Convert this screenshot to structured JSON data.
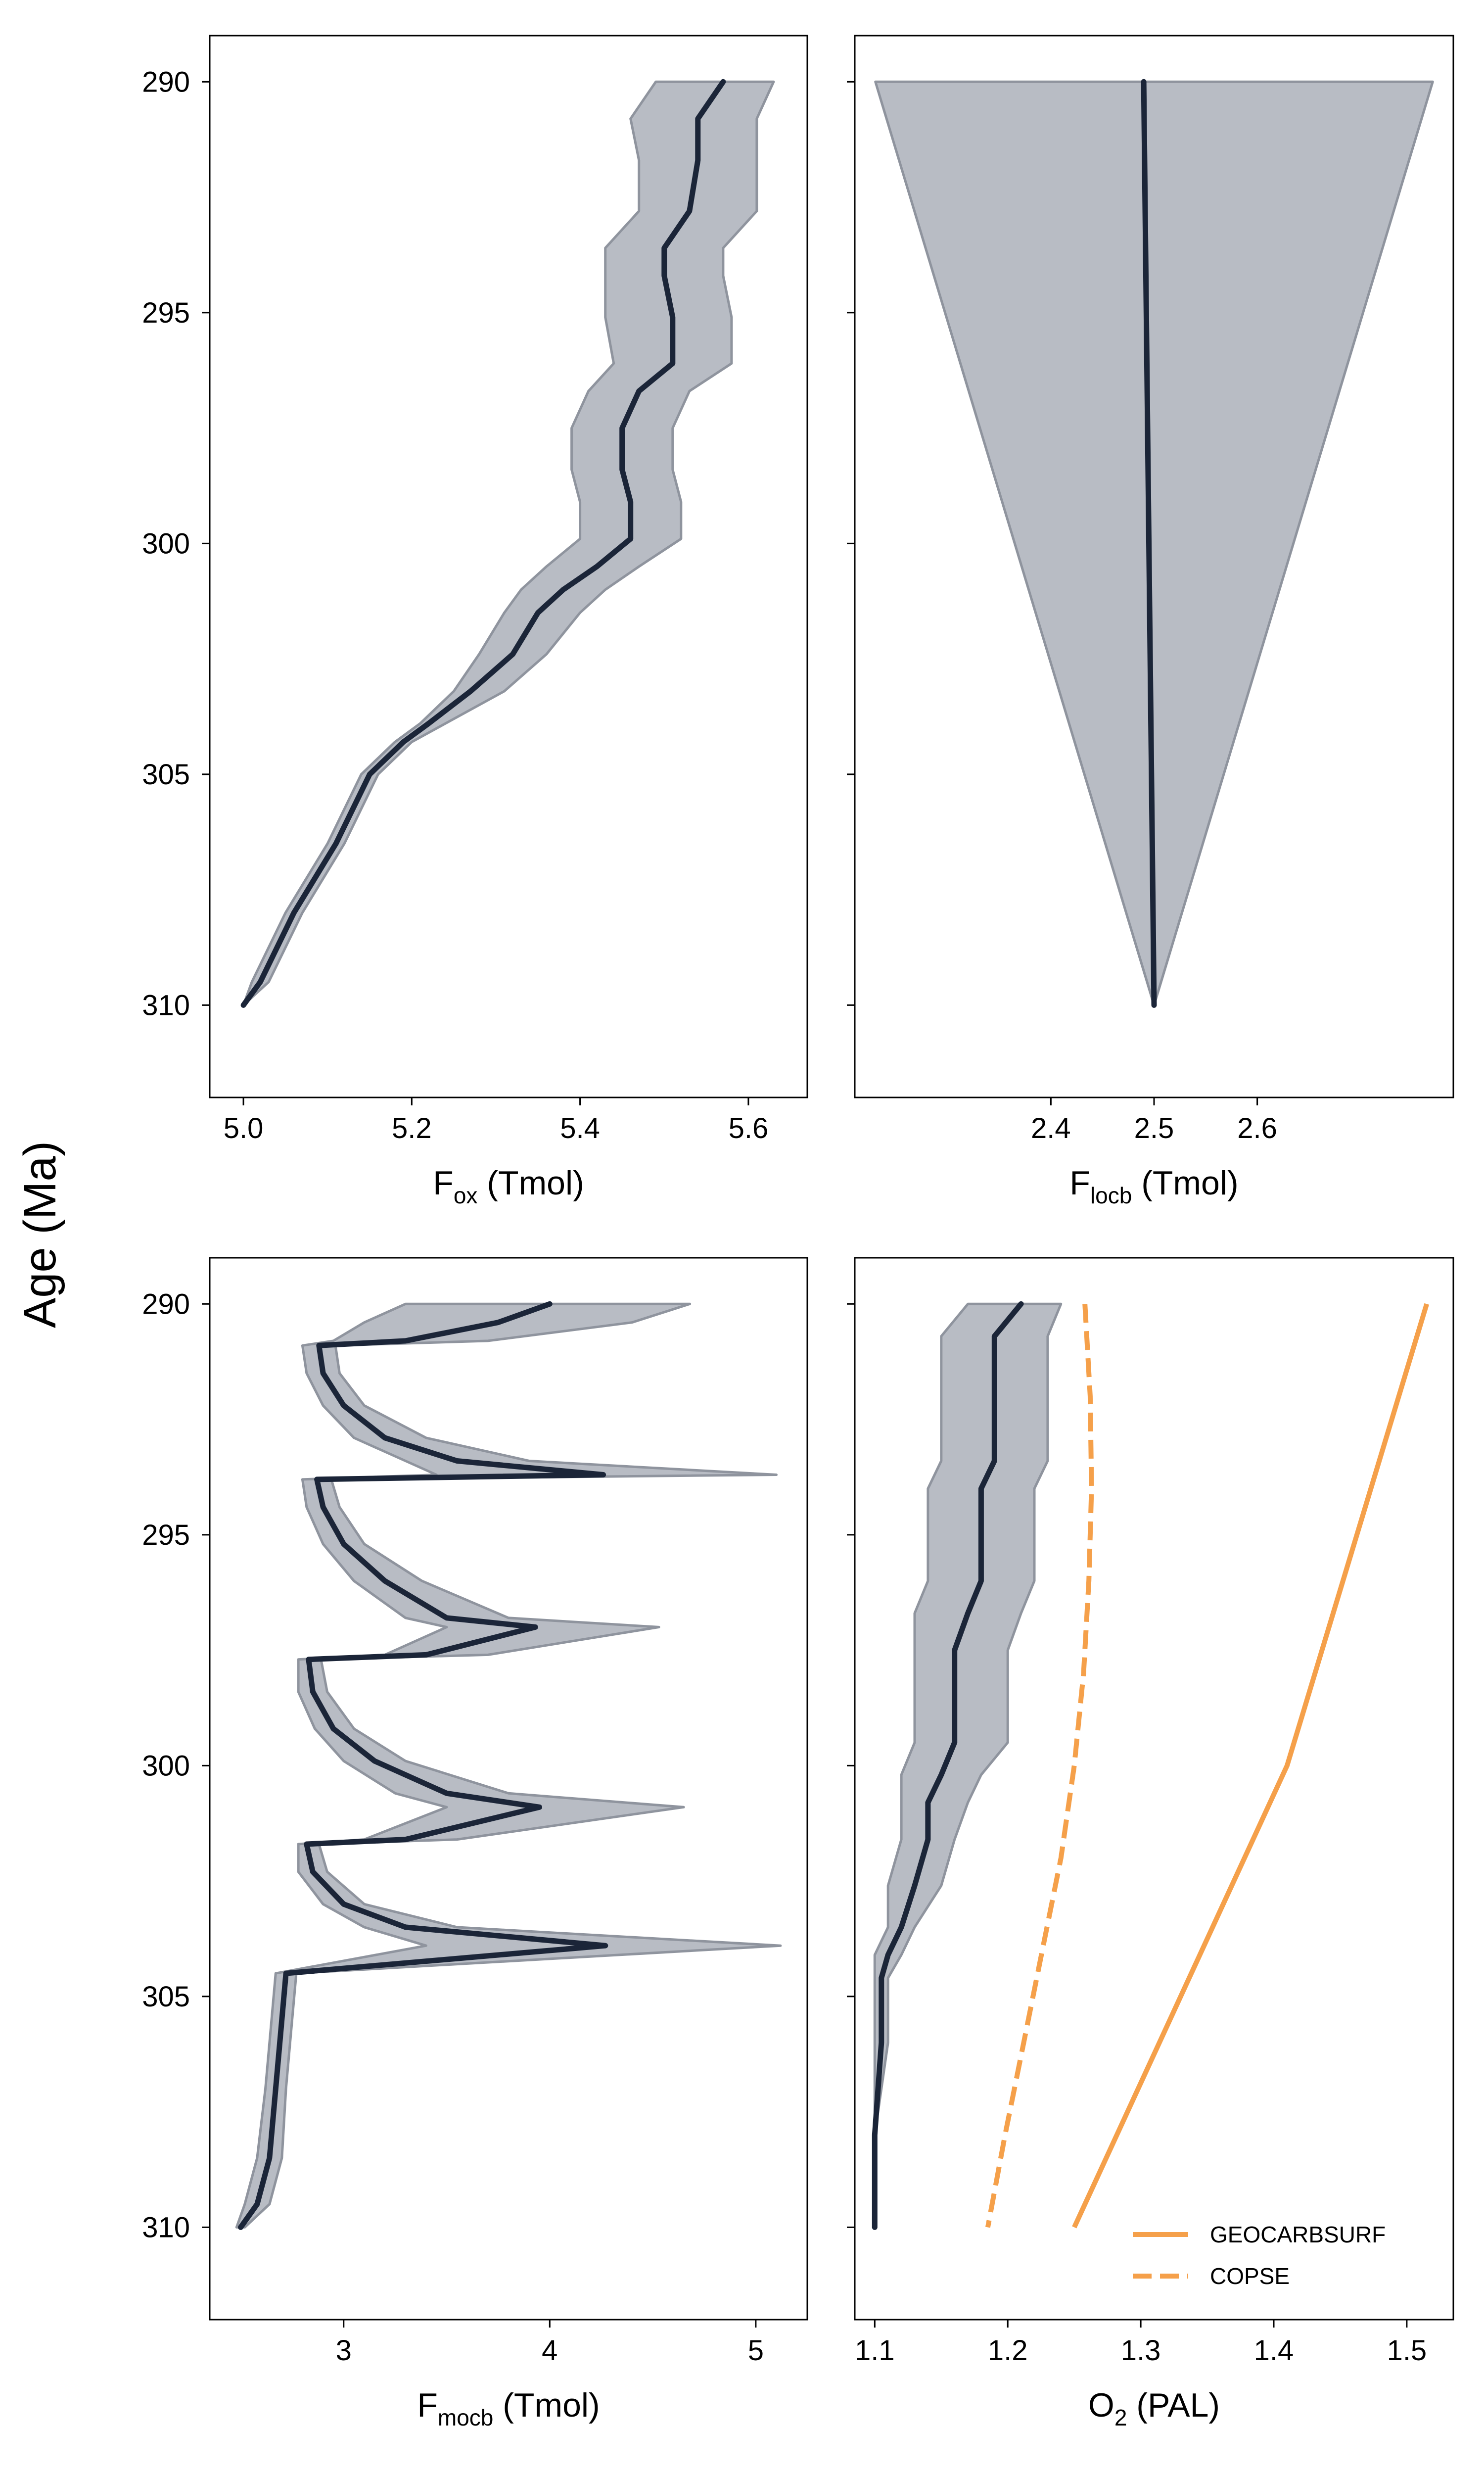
{
  "figure": {
    "ylabel": "Age (Ma)"
  },
  "colors": {
    "mean_line": "#1b2538",
    "band_fill": "#b8bcc4",
    "band_edge": "#8f949e",
    "orange": "#f5a04a"
  },
  "chart_data": [
    {
      "type": "area",
      "panel": "top-left",
      "xlabel_main": "F",
      "xlabel_sub": "ox",
      "xlabel_unit": " (Tmol)",
      "xlim": [
        4.96,
        5.67
      ],
      "ylim": [
        312,
        289
      ],
      "xticks": [
        5.0,
        5.2,
        5.4,
        5.6
      ],
      "xtick_labels": [
        "5.0",
        "5.2",
        "5.4",
        "5.6"
      ],
      "yticks": [
        290,
        295,
        300,
        305,
        310
      ],
      "ytick_labels": [
        "290",
        "295",
        "300",
        "305",
        "310"
      ],
      "show_ytick_labels": true,
      "series": [
        {
          "kind": "line",
          "y": [
            290,
            290.8,
            291.7,
            292.8,
            293.6,
            294.2,
            295.1,
            296.1,
            296.7,
            297.5,
            298.4,
            299.1,
            299.9,
            300.5,
            301.0,
            301.5,
            302.4,
            303.2,
            303.9,
            304.3,
            305.0,
            306.5,
            308.0,
            309.5,
            310
          ],
          "x": [
            5.57,
            5.54,
            5.54,
            5.53,
            5.5,
            5.5,
            5.51,
            5.51,
            5.47,
            5.45,
            5.45,
            5.46,
            5.46,
            5.42,
            5.38,
            5.35,
            5.32,
            5.27,
            5.22,
            5.19,
            5.15,
            5.11,
            5.06,
            5.02,
            5.0
          ]
        },
        {
          "kind": "band",
          "y": [
            290,
            290.8,
            291.7,
            292.8,
            293.6,
            294.2,
            295.1,
            296.1,
            296.7,
            297.5,
            298.4,
            299.1,
            299.9,
            300.5,
            301.0,
            301.5,
            302.4,
            303.2,
            303.9,
            304.3,
            305.0,
            306.5,
            308.0,
            309.5,
            310
          ],
          "lower": [
            5.49,
            5.46,
            5.47,
            5.47,
            5.43,
            5.43,
            5.43,
            5.44,
            5.41,
            5.39,
            5.39,
            5.4,
            5.4,
            5.36,
            5.33,
            5.31,
            5.28,
            5.25,
            5.21,
            5.18,
            5.14,
            5.1,
            5.05,
            5.01,
            5.0
          ],
          "upper": [
            5.63,
            5.61,
            5.61,
            5.61,
            5.57,
            5.57,
            5.58,
            5.58,
            5.53,
            5.51,
            5.51,
            5.52,
            5.52,
            5.47,
            5.43,
            5.4,
            5.36,
            5.31,
            5.24,
            5.2,
            5.16,
            5.12,
            5.07,
            5.03,
            5.0
          ]
        }
      ]
    },
    {
      "type": "area",
      "panel": "top-right",
      "xlabel_main": "F",
      "xlabel_sub": "locb",
      "xlabel_unit": " (Tmol)",
      "xlim": [
        2.21,
        2.79
      ],
      "ylim": [
        312,
        289
      ],
      "xticks": [
        2.4,
        2.5,
        2.6
      ],
      "xtick_labels": [
        "2.4",
        "2.5",
        "2.6"
      ],
      "yticks": [
        290,
        295,
        300,
        305,
        310
      ],
      "ytick_labels": [
        "290",
        "295",
        "300",
        "305",
        "310"
      ],
      "show_ytick_labels": false,
      "series": [
        {
          "kind": "line",
          "y": [
            290,
            310
          ],
          "x": [
            2.49,
            2.5
          ]
        },
        {
          "kind": "band",
          "y": [
            290,
            310
          ],
          "lower": [
            2.23,
            2.5
          ],
          "upper": [
            2.77,
            2.5
          ]
        }
      ]
    },
    {
      "type": "area",
      "panel": "bottom-left",
      "xlabel_main": "F",
      "xlabel_sub": "mocb",
      "xlabel_unit": " (Tmol)",
      "xlim": [
        2.35,
        5.25
      ],
      "ylim": [
        312,
        289
      ],
      "xticks": [
        3,
        4,
        5
      ],
      "xtick_labels": [
        "3",
        "4",
        "5"
      ],
      "yticks": [
        290,
        295,
        300,
        305,
        310
      ],
      "ytick_labels": [
        "290",
        "295",
        "300",
        "305",
        "310"
      ],
      "show_ytick_labels": true,
      "series": [
        {
          "kind": "line",
          "y": [
            290,
            290.4,
            290.8,
            290.9,
            291.5,
            292.2,
            292.9,
            293.4,
            293.7,
            293.8,
            294.4,
            295.2,
            296.0,
            296.8,
            297.0,
            297.6,
            297.7,
            298.4,
            299.2,
            299.9,
            300.6,
            300.9,
            301.6,
            301.7,
            302.3,
            303.0,
            303.5,
            303.9,
            304.5,
            305.5,
            307.0,
            308.5,
            309.5,
            310
          ],
          "x": [
            4.0,
            3.75,
            3.3,
            2.88,
            2.9,
            3.0,
            3.2,
            3.55,
            4.26,
            2.87,
            2.9,
            3.0,
            3.2,
            3.5,
            3.93,
            3.4,
            2.83,
            2.85,
            2.95,
            3.15,
            3.5,
            3.95,
            3.3,
            2.82,
            2.85,
            3.0,
            3.3,
            4.27,
            2.72,
            2.7,
            2.67,
            2.64,
            2.58,
            2.5
          ]
        },
        {
          "kind": "band",
          "y": [
            290,
            290.4,
            290.8,
            290.9,
            291.5,
            292.2,
            292.9,
            293.4,
            293.7,
            293.8,
            294.4,
            295.2,
            296.0,
            296.8,
            297.0,
            297.6,
            297.7,
            298.4,
            299.2,
            299.9,
            300.6,
            300.9,
            301.6,
            301.7,
            302.3,
            303.0,
            303.5,
            303.9,
            304.5,
            305.5,
            307.0,
            308.5,
            309.5,
            310
          ],
          "lower": [
            3.3,
            3.1,
            2.95,
            2.8,
            2.82,
            2.9,
            3.05,
            3.3,
            3.45,
            2.8,
            2.82,
            2.9,
            3.05,
            3.3,
            3.5,
            3.2,
            2.78,
            2.78,
            2.86,
            3.0,
            3.25,
            3.5,
            3.1,
            2.78,
            2.78,
            2.9,
            3.1,
            3.4,
            2.67,
            2.65,
            2.62,
            2.58,
            2.52,
            2.48
          ],
          "upper": [
            4.68,
            4.4,
            3.7,
            2.96,
            2.98,
            3.1,
            3.4,
            3.9,
            5.1,
            2.94,
            2.98,
            3.1,
            3.38,
            3.8,
            4.53,
            3.7,
            2.89,
            2.92,
            3.05,
            3.3,
            3.8,
            4.65,
            3.55,
            2.88,
            2.92,
            3.1,
            3.55,
            5.12,
            2.77,
            2.75,
            2.72,
            2.7,
            2.64,
            2.52
          ]
        }
      ]
    },
    {
      "type": "line",
      "panel": "bottom-right",
      "xlabel_main": "O",
      "xlabel_sub": "2",
      "xlabel_unit": " (PAL)",
      "xlim": [
        1.085,
        1.535
      ],
      "ylim": [
        312,
        289
      ],
      "xticks": [
        1.1,
        1.2,
        1.3,
        1.4,
        1.5
      ],
      "xtick_labels": [
        "1.1",
        "1.2",
        "1.3",
        "1.4",
        "1.5"
      ],
      "yticks": [
        290,
        295,
        300,
        305,
        310
      ],
      "ytick_labels": [
        "290",
        "295",
        "300",
        "305",
        "310"
      ],
      "show_ytick_labels": false,
      "legend_position": "lower-right",
      "series": [
        {
          "kind": "line",
          "y": [
            290,
            290.7,
            292.0,
            293.4,
            294.0,
            295.0,
            296.0,
            296.7,
            297.5,
            298.5,
            299.5,
            300.2,
            300.8,
            301.6,
            302.6,
            303.5,
            304.1,
            304.6,
            306.0,
            308.0,
            310
          ],
          "x": [
            1.21,
            1.19,
            1.19,
            1.19,
            1.18,
            1.18,
            1.18,
            1.17,
            1.16,
            1.16,
            1.16,
            1.15,
            1.14,
            1.14,
            1.13,
            1.12,
            1.11,
            1.105,
            1.105,
            1.1,
            1.1
          ]
        },
        {
          "kind": "band",
          "y": [
            290,
            290.7,
            292.0,
            293.4,
            294.0,
            295.0,
            296.0,
            296.7,
            297.5,
            298.5,
            299.5,
            300.2,
            300.8,
            301.6,
            302.6,
            303.5,
            304.1,
            304.6,
            306.0,
            308.0,
            310
          ],
          "lower": [
            1.17,
            1.15,
            1.15,
            1.15,
            1.14,
            1.14,
            1.14,
            1.13,
            1.13,
            1.13,
            1.13,
            1.12,
            1.12,
            1.12,
            1.11,
            1.11,
            1.1,
            1.1,
            1.1,
            1.1,
            1.1
          ],
          "upper": [
            1.24,
            1.23,
            1.23,
            1.23,
            1.22,
            1.22,
            1.22,
            1.21,
            1.2,
            1.2,
            1.2,
            1.18,
            1.17,
            1.16,
            1.15,
            1.13,
            1.12,
            1.11,
            1.11,
            1.1,
            1.1
          ]
        },
        {
          "kind": "line",
          "name": "GEOCARBSURF",
          "style": "solid",
          "color": "#f5a04a",
          "y": [
            290,
            300,
            310
          ],
          "x": [
            1.515,
            1.41,
            1.25
          ]
        },
        {
          "kind": "line",
          "name": "COPSE",
          "style": "dashed",
          "color": "#f5a04a",
          "y": [
            290,
            292,
            294,
            296,
            298,
            300,
            302,
            304,
            306,
            308,
            310
          ],
          "x": [
            1.258,
            1.262,
            1.263,
            1.261,
            1.257,
            1.25,
            1.24,
            1.226,
            1.212,
            1.198,
            1.185
          ]
        }
      ]
    }
  ]
}
